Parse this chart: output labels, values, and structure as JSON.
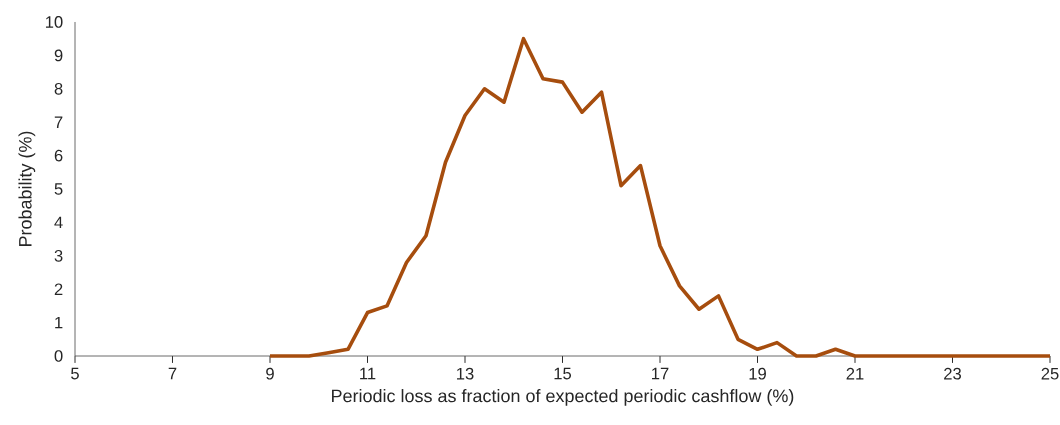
{
  "chart_data": {
    "type": "line",
    "xlabel": "Periodic loss as fraction of expected periodic cashflow (%)",
    "ylabel": "Probability (%)",
    "x": [
      9.0,
      9.4,
      9.8,
      10.2,
      10.6,
      11.0,
      11.4,
      11.8,
      12.2,
      12.6,
      13.0,
      13.4,
      13.8,
      14.2,
      14.6,
      15.0,
      15.4,
      15.8,
      16.2,
      16.6,
      17.0,
      17.4,
      17.8,
      18.2,
      18.6,
      19.0,
      19.4,
      19.8,
      20.2,
      20.6,
      21.0,
      21.4,
      21.8,
      22.2,
      22.6,
      23.0,
      23.4,
      23.8,
      24.2,
      24.6,
      25.0
    ],
    "series": [
      {
        "color": "#a64d0e",
        "values": [
          0,
          0,
          0,
          0.1,
          0.2,
          1.3,
          1.5,
          2.8,
          3.6,
          5.8,
          7.2,
          8.0,
          7.6,
          9.5,
          8.3,
          8.2,
          7.3,
          7.9,
          5.1,
          5.7,
          3.3,
          2.1,
          1.4,
          1.8,
          0.5,
          0.2,
          0.4,
          0,
          0,
          0.2,
          0,
          0,
          0,
          0,
          0,
          0,
          0,
          0,
          0,
          0,
          0
        ]
      }
    ],
    "xlim": [
      5,
      25
    ],
    "ylim": [
      0,
      10
    ],
    "xticks": [
      5,
      7,
      9,
      11,
      13,
      15,
      17,
      19,
      21,
      23,
      25
    ],
    "yticks": [
      0,
      1,
      2,
      3,
      4,
      5,
      6,
      7,
      8,
      9,
      10
    ],
    "grid": false,
    "marker": "none",
    "line_style": "solid"
  }
}
